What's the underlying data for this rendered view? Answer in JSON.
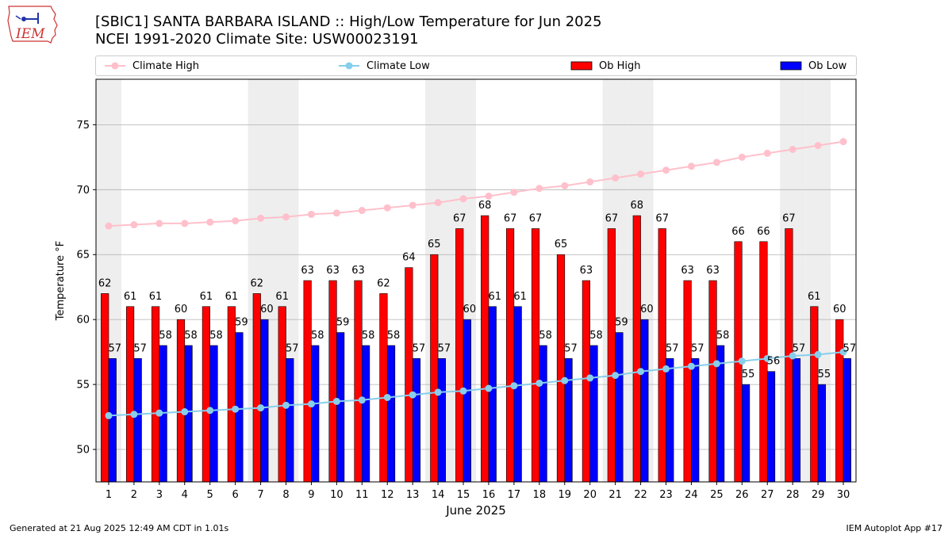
{
  "title_line1": "[SBIC1] SANTA BARBARA ISLAND :: High/Low Temperature for Jun 2025",
  "title_line2": "NCEI 1991-2020 Climate Site: USW00023191",
  "logo_text": "IEM",
  "legend": {
    "climate_high": "Climate High",
    "climate_low": "Climate Low",
    "ob_high": "Ob High",
    "ob_low": "Ob Low"
  },
  "colors": {
    "climate_high": "#ffc0cb",
    "climate_low": "#87ceeb",
    "ob_high": "#ff0000",
    "ob_low": "#0000ff",
    "weekend_shade": "#eeeeee",
    "grid": "#b0b0b0"
  },
  "footer": {
    "left": "Generated at 21 Aug 2025 12:49 AM CDT in 1.01s",
    "right": "IEM Autoplot App #17"
  },
  "chart_data": {
    "type": "bar",
    "xlabel": "June 2025",
    "ylabel": "Temperature °F",
    "ylim": [
      47.5,
      78.5
    ],
    "yticks": [
      50,
      55,
      60,
      65,
      70,
      75
    ],
    "grid": "horizontal",
    "legend_position": "top",
    "categories": [
      "1",
      "2",
      "3",
      "4",
      "5",
      "6",
      "7",
      "8",
      "9",
      "10",
      "11",
      "12",
      "13",
      "14",
      "15",
      "16",
      "17",
      "18",
      "19",
      "20",
      "21",
      "22",
      "23",
      "24",
      "25",
      "26",
      "27",
      "28",
      "29",
      "30"
    ],
    "shaded_days": [
      1,
      7,
      8,
      14,
      15,
      21,
      22,
      28,
      29
    ],
    "series": [
      {
        "name": "Ob High",
        "kind": "bar",
        "values": [
          62,
          61,
          61,
          60,
          61,
          61,
          62,
          61,
          63,
          63,
          63,
          62,
          64,
          65,
          67,
          68,
          67,
          67,
          65,
          63,
          67,
          68,
          67,
          63,
          63,
          66,
          66,
          67,
          61,
          60
        ]
      },
      {
        "name": "Ob Low",
        "kind": "bar",
        "values": [
          57,
          57,
          58,
          58,
          58,
          59,
          60,
          57,
          58,
          59,
          58,
          58,
          57,
          57,
          60,
          61,
          61,
          58,
          57,
          58,
          59,
          60,
          57,
          57,
          58,
          55,
          56,
          57,
          55,
          57
        ]
      },
      {
        "name": "Climate High",
        "kind": "line",
        "values": [
          67.2,
          67.3,
          67.4,
          67.4,
          67.5,
          67.6,
          67.8,
          67.9,
          68.1,
          68.2,
          68.4,
          68.6,
          68.8,
          69.0,
          69.3,
          69.5,
          69.8,
          70.1,
          70.3,
          70.6,
          70.9,
          71.2,
          71.5,
          71.8,
          72.1,
          72.5,
          72.8,
          73.1,
          73.4,
          73.7
        ]
      },
      {
        "name": "Climate Low",
        "kind": "line",
        "values": [
          52.6,
          52.7,
          52.8,
          52.9,
          53.0,
          53.1,
          53.2,
          53.4,
          53.5,
          53.7,
          53.8,
          54.0,
          54.2,
          54.4,
          54.5,
          54.7,
          54.9,
          55.1,
          55.3,
          55.5,
          55.7,
          56.0,
          56.2,
          56.4,
          56.6,
          56.8,
          57.0,
          57.2,
          57.3,
          57.5
        ]
      }
    ]
  }
}
